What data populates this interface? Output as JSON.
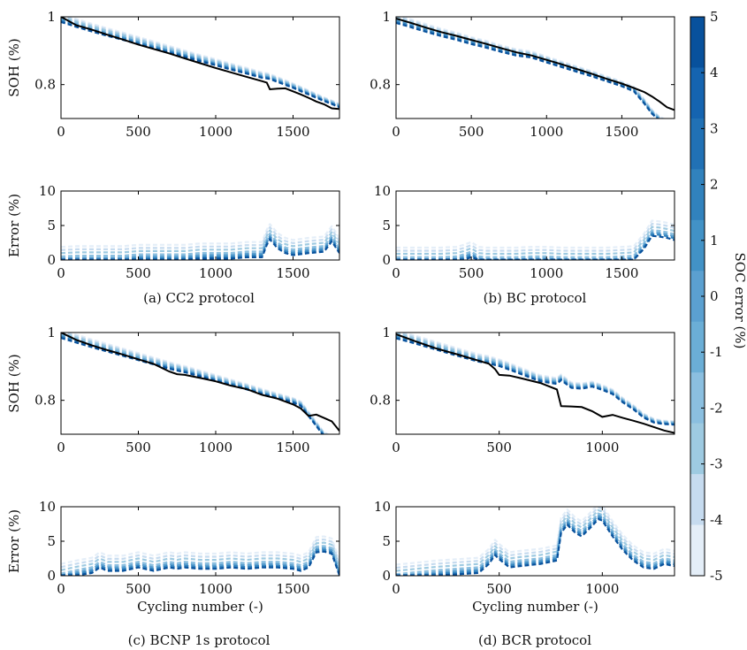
{
  "figure": {
    "colorbar": {
      "label": "SOC error (%)",
      "ticks": [
        "5",
        "4",
        "3",
        "2",
        "1",
        "0",
        "-1",
        "-2",
        "-3",
        "-4",
        "-5"
      ],
      "colors": [
        "#08519c",
        "#1564b0",
        "#2171b5",
        "#3182bd",
        "#4292c6",
        "#5ba0d0",
        "#6baed6",
        "#8bbfe0",
        "#9ecae1",
        "#c6dbef",
        "#e4eef8"
      ]
    },
    "reference_color": "#000000"
  },
  "chart_data": [
    {
      "panel": "a",
      "kind": "soh",
      "type": "line",
      "ylabel": "SOH (%)",
      "xlabel": "",
      "xlim": [
        0,
        1800
      ],
      "ylim": [
        0.7,
        1.0
      ],
      "xticks": [
        0,
        500,
        1000,
        1500
      ],
      "yticks": [
        0.8,
        1
      ],
      "x": [
        0,
        100,
        200,
        300,
        400,
        500,
        600,
        700,
        800,
        900,
        1000,
        1100,
        1200,
        1300,
        1330,
        1350,
        1400,
        1450,
        1500,
        1550,
        1600,
        1650,
        1700,
        1750,
        1800
      ],
      "series": [
        {
          "name": "reference",
          "y": [
            1.0,
            0.975,
            0.962,
            0.947,
            0.933,
            0.918,
            0.905,
            0.892,
            0.877,
            0.863,
            0.849,
            0.836,
            0.823,
            0.81,
            0.806,
            0.786,
            0.788,
            0.789,
            0.78,
            0.771,
            0.761,
            0.75,
            0.742,
            0.73,
            0.728
          ]
        },
        {
          "name": "estimate",
          "y": [
            0.997,
            0.982,
            0.968,
            0.955,
            0.943,
            0.93,
            0.917,
            0.904,
            0.891,
            0.878,
            0.866,
            0.853,
            0.841,
            0.828,
            0.826,
            0.824,
            0.815,
            0.806,
            0.797,
            0.787,
            0.777,
            0.767,
            0.757,
            0.748,
            0.738
          ]
        }
      ]
    },
    {
      "panel": "b",
      "kind": "soh",
      "type": "line",
      "ylabel": "",
      "xlabel": "",
      "xlim": [
        0,
        1850
      ],
      "ylim": [
        0.7,
        1.0
      ],
      "xticks": [
        0,
        500,
        1000,
        1500
      ],
      "yticks": [
        0.8,
        1
      ],
      "x": [
        0,
        100,
        200,
        300,
        400,
        500,
        600,
        700,
        800,
        900,
        1000,
        1100,
        1200,
        1300,
        1400,
        1500,
        1580,
        1650,
        1700,
        1750,
        1800,
        1850
      ],
      "series": [
        {
          "name": "reference",
          "y": [
            0.995,
            0.982,
            0.968,
            0.955,
            0.944,
            0.932,
            0.92,
            0.907,
            0.895,
            0.886,
            0.873,
            0.86,
            0.846,
            0.832,
            0.817,
            0.803,
            0.79,
            0.778,
            0.765,
            0.75,
            0.733,
            0.725
          ]
        },
        {
          "name": "estimate",
          "y": [
            0.994,
            0.981,
            0.967,
            0.954,
            0.943,
            0.93,
            0.919,
            0.906,
            0.895,
            0.889,
            0.874,
            0.86,
            0.846,
            0.832,
            0.817,
            0.802,
            0.787,
            0.75,
            0.72,
            0.7,
            0.69,
            0.69
          ]
        }
      ]
    },
    {
      "panel": "c",
      "kind": "soh",
      "type": "line",
      "ylabel": "SOH (%)",
      "xlabel": "",
      "xlim": [
        0,
        1800
      ],
      "ylim": [
        0.7,
        1.0
      ],
      "xticks": [
        0,
        500,
        1000,
        1500
      ],
      "yticks": [
        0.8,
        1
      ],
      "x": [
        0,
        100,
        200,
        300,
        400,
        500,
        600,
        700,
        750,
        800,
        900,
        1000,
        1100,
        1200,
        1300,
        1400,
        1500,
        1550,
        1600,
        1650,
        1700,
        1750,
        1800
      ],
      "series": [
        {
          "name": "reference",
          "y": [
            1.0,
            0.978,
            0.962,
            0.948,
            0.935,
            0.921,
            0.907,
            0.885,
            0.877,
            0.875,
            0.866,
            0.856,
            0.843,
            0.833,
            0.816,
            0.805,
            0.788,
            0.776,
            0.754,
            0.758,
            0.748,
            0.738,
            0.71
          ]
        },
        {
          "name": "estimate",
          "y": [
            0.996,
            0.982,
            0.968,
            0.955,
            0.942,
            0.929,
            0.916,
            0.903,
            0.897,
            0.892,
            0.879,
            0.866,
            0.853,
            0.84,
            0.826,
            0.813,
            0.8,
            0.79,
            0.76,
            0.73,
            0.7,
            0.69,
            0.69
          ]
        }
      ]
    },
    {
      "panel": "d",
      "kind": "soh",
      "type": "line",
      "ylabel": "",
      "xlabel": "",
      "xlim": [
        0,
        1350
      ],
      "ylim": [
        0.7,
        1.0
      ],
      "xticks": [
        0,
        500,
        1000
      ],
      "yticks": [
        0.8,
        1
      ],
      "x": [
        0,
        100,
        200,
        300,
        400,
        450,
        480,
        500,
        550,
        600,
        700,
        780,
        800,
        850,
        900,
        950,
        1000,
        1050,
        1100,
        1150,
        1200,
        1250,
        1300,
        1350
      ],
      "series": [
        {
          "name": "reference",
          "y": [
            0.995,
            0.973,
            0.952,
            0.935,
            0.917,
            0.908,
            0.892,
            0.875,
            0.873,
            0.866,
            0.851,
            0.832,
            0.783,
            0.782,
            0.78,
            0.768,
            0.751,
            0.757,
            0.748,
            0.74,
            0.731,
            0.721,
            0.711,
            0.704
          ]
        },
        {
          "name": "estimate",
          "y": [
            0.995,
            0.978,
            0.96,
            0.942,
            0.925,
            0.92,
            0.914,
            0.911,
            0.9,
            0.888,
            0.865,
            0.857,
            0.868,
            0.845,
            0.842,
            0.848,
            0.838,
            0.825,
            0.8,
            0.78,
            0.755,
            0.74,
            0.735,
            0.733
          ]
        }
      ]
    },
    {
      "panel": "a",
      "kind": "error",
      "type": "line",
      "ylabel": "Error (%)",
      "xlabel": "",
      "xlim": [
        0,
        1800
      ],
      "ylim": [
        0,
        10
      ],
      "xticks": [
        0,
        500,
        1000,
        1500
      ],
      "yticks": [
        0,
        5,
        10
      ],
      "x": [
        0,
        100,
        200,
        300,
        400,
        500,
        600,
        700,
        800,
        900,
        1000,
        1100,
        1200,
        1300,
        1330,
        1350,
        1400,
        1450,
        1500,
        1600,
        1700,
        1750,
        1800
      ],
      "series": [
        {
          "name": "error",
          "y": [
            0.5,
            0.6,
            0.6,
            0.6,
            0.6,
            0.8,
            0.8,
            0.8,
            0.8,
            1.0,
            1.0,
            1.0,
            1.2,
            1.2,
            3.0,
            3.8,
            2.5,
            1.8,
            1.5,
            1.8,
            2.0,
            3.5,
            1.8
          ]
        }
      ]
    },
    {
      "panel": "b",
      "kind": "error",
      "type": "line",
      "ylabel": "",
      "xlabel": "",
      "xlim": [
        0,
        1850
      ],
      "ylim": [
        0,
        10
      ],
      "xticks": [
        0,
        500,
        1000,
        1500
      ],
      "yticks": [
        0,
        5,
        10
      ],
      "x": [
        0,
        100,
        200,
        300,
        400,
        450,
        500,
        550,
        600,
        700,
        800,
        900,
        1000,
        1100,
        1200,
        1300,
        1400,
        1500,
        1580,
        1650,
        1700,
        1750,
        1800,
        1850
      ],
      "series": [
        {
          "name": "error",
          "y": [
            0.4,
            0.4,
            0.4,
            0.4,
            0.5,
            0.8,
            1.2,
            0.5,
            0.4,
            0.4,
            0.4,
            0.5,
            0.5,
            0.4,
            0.4,
            0.4,
            0.4,
            0.5,
            0.6,
            2.5,
            4.3,
            4.2,
            4.0,
            3.7
          ]
        }
      ]
    },
    {
      "panel": "c",
      "kind": "error",
      "type": "line",
      "ylabel": "Error (%)",
      "xlabel": "Cycling number (-)",
      "xlim": [
        0,
        1800
      ],
      "ylim": [
        0,
        10
      ],
      "xticks": [
        0,
        500,
        1000,
        1500
      ],
      "yticks": [
        0,
        5,
        10
      ],
      "x": [
        0,
        100,
        200,
        250,
        300,
        400,
        500,
        600,
        700,
        750,
        800,
        900,
        1000,
        1100,
        1200,
        1300,
        1400,
        1500,
        1550,
        1600,
        1650,
        1700,
        1750,
        1800
      ],
      "series": [
        {
          "name": "error",
          "y": [
            0.3,
            0.8,
            1.2,
            2.0,
            1.5,
            1.5,
            2.0,
            1.5,
            2.0,
            1.8,
            2.0,
            1.8,
            1.8,
            2.0,
            1.8,
            2.0,
            2.0,
            1.8,
            1.5,
            2.0,
            4.2,
            4.3,
            4.0,
            0.8
          ]
        }
      ]
    },
    {
      "panel": "d",
      "kind": "error",
      "type": "line",
      "ylabel": "",
      "xlabel": "Cycling number (-)",
      "xlim": [
        0,
        1350
      ],
      "ylim": [
        0,
        10
      ],
      "xticks": [
        0,
        500,
        1000
      ],
      "yticks": [
        0,
        5,
        10
      ],
      "x": [
        0,
        100,
        200,
        300,
        400,
        450,
        480,
        500,
        550,
        600,
        700,
        780,
        800,
        830,
        870,
        900,
        950,
        980,
        1000,
        1050,
        1100,
        1150,
        1200,
        1250,
        1300,
        1350
      ],
      "series": [
        {
          "name": "error",
          "y": [
            0.2,
            0.5,
            0.8,
            1.0,
            1.2,
            2.5,
            3.8,
            3.2,
            2.0,
            2.2,
            2.5,
            3.0,
            7.0,
            8.2,
            7.0,
            6.5,
            8.0,
            9.0,
            8.8,
            6.5,
            4.5,
            3.0,
            2.0,
            1.8,
            2.5,
            2.2
          ]
        }
      ]
    }
  ],
  "captions": {
    "a": "(a) CC2 protocol",
    "b": "(b) BC protocol",
    "c": "(c) BCNP 1s protocol",
    "d": "(d) BCR protocol"
  }
}
